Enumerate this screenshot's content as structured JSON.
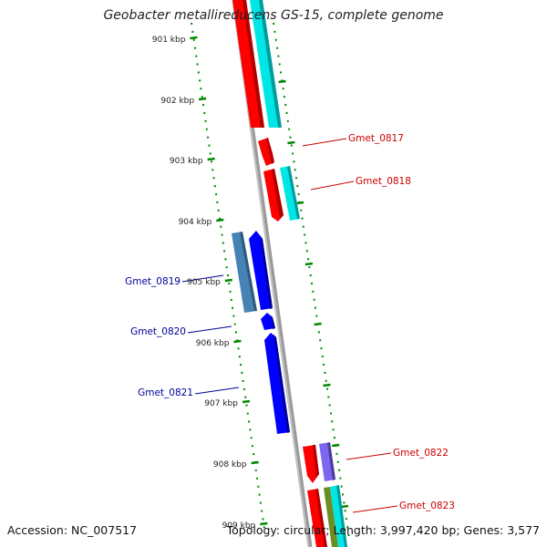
{
  "title": "Geobacter metallireducens GS-15, complete genome",
  "accession": "Accession: NC_007517",
  "summary": "Topology: circular; Length: 3,997,420 bp; Genes: 3,577",
  "ticks": [
    "901 kbp",
    "902 kbp",
    "903 kbp",
    "904 kbp",
    "905 kbp",
    "906 kbp",
    "907 kbp",
    "908 kbp",
    "909 kbp"
  ],
  "genes": [
    {
      "name": "Gmet_0817",
      "strand": "forward",
      "color": "#cc0000"
    },
    {
      "name": "Gmet_0818",
      "strand": "forward",
      "color": "#cc0000"
    },
    {
      "name": "Gmet_0819",
      "strand": "reverse",
      "color": "#000099"
    },
    {
      "name": "Gmet_0820",
      "strand": "reverse",
      "color": "#000099"
    },
    {
      "name": "Gmet_0821",
      "strand": "reverse",
      "color": "#000099"
    },
    {
      "name": "Gmet_0822",
      "strand": "forward",
      "color": "#cc0000"
    },
    {
      "name": "Gmet_0823",
      "strand": "forward",
      "color": "#cc0000"
    }
  ],
  "colors": {
    "backbone": "#888888",
    "cds_forward": "#ff0000",
    "cds_reverse": "#0000dd",
    "feature_cyan": "#00e0e0",
    "feature_steel": "#4682b4",
    "feature_purple": "#6a5acd",
    "feature_olive": "#6b8e23",
    "tick_green": "#008800"
  }
}
